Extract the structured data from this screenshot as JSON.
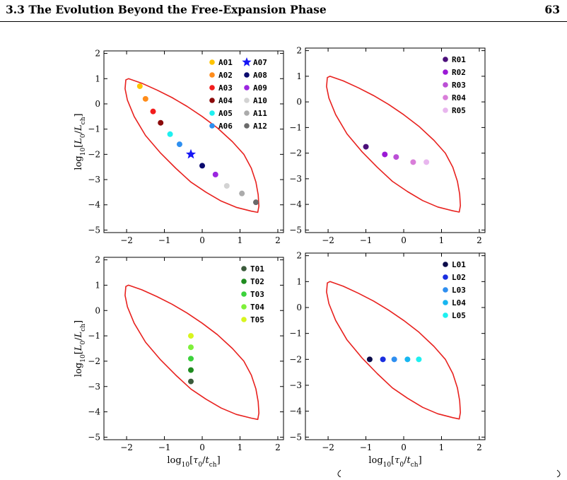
{
  "header": {
    "title": "3.3 The Evolution Beyond the Free-Expansion Phase",
    "page_number": "63"
  },
  "colors": {
    "contour": "#e8211e",
    "axis": "#000000"
  },
  "chart_data": [
    {
      "type": "scatter",
      "panel": "top-left",
      "xlim": [
        -2.6,
        2.15
      ],
      "ylim": [
        -5.1,
        2.1
      ],
      "xticks": [
        -2,
        -1,
        0,
        1,
        2
      ],
      "yticks": [
        -5,
        -4,
        -3,
        -2,
        -1,
        0,
        1,
        2
      ],
      "xlabel": "",
      "ylabel": "log10[L0/Lch]",
      "legend_position": "top-right",
      "legend_columns": 2,
      "contour": [
        [
          -2.02,
          0.95
        ],
        [
          -1.95,
          1.0
        ],
        [
          -1.6,
          0.82
        ],
        [
          -1.2,
          0.55
        ],
        [
          -0.8,
          0.25
        ],
        [
          -0.4,
          -0.1
        ],
        [
          0.0,
          -0.5
        ],
        [
          0.4,
          -0.95
        ],
        [
          0.8,
          -1.5
        ],
        [
          1.1,
          -2.0
        ],
        [
          1.3,
          -2.55
        ],
        [
          1.42,
          -3.1
        ],
        [
          1.48,
          -3.6
        ],
        [
          1.5,
          -4.05
        ],
        [
          1.47,
          -4.3
        ],
        [
          1.3,
          -4.25
        ],
        [
          0.9,
          -4.1
        ],
        [
          0.5,
          -3.85
        ],
        [
          0.1,
          -3.5
        ],
        [
          -0.3,
          -3.1
        ],
        [
          -0.7,
          -2.55
        ],
        [
          -1.1,
          -1.95
        ],
        [
          -1.5,
          -1.25
        ],
        [
          -1.8,
          -0.5
        ],
        [
          -1.98,
          0.15
        ],
        [
          -2.04,
          0.6
        ]
      ],
      "series": [
        {
          "name": "A01",
          "color": "#ffc400",
          "marker": "circle",
          "x": -1.65,
          "y": 0.7
        },
        {
          "name": "A02",
          "color": "#ff8c1a",
          "marker": "circle",
          "x": -1.5,
          "y": 0.2
        },
        {
          "name": "A03",
          "color": "#f21c1c",
          "marker": "circle",
          "x": -1.3,
          "y": -0.3
        },
        {
          "name": "A04",
          "color": "#8b0a0a",
          "marker": "circle",
          "x": -1.1,
          "y": -0.75
        },
        {
          "name": "A05",
          "color": "#1ef0f0",
          "marker": "circle",
          "x": -0.85,
          "y": -1.2
        },
        {
          "name": "A06",
          "color": "#2e8ff0",
          "marker": "circle",
          "x": -0.6,
          "y": -1.6
        },
        {
          "name": "A07",
          "color": "#1616f5",
          "marker": "star",
          "x": -0.3,
          "y": -2.0
        },
        {
          "name": "A08",
          "color": "#0a0a6e",
          "marker": "circle",
          "x": 0.0,
          "y": -2.45
        },
        {
          "name": "A09",
          "color": "#9b26e0",
          "marker": "circle",
          "x": 0.35,
          "y": -2.8
        },
        {
          "name": "A10",
          "color": "#d3d3d3",
          "marker": "circle",
          "x": 0.65,
          "y": -3.25
        },
        {
          "name": "A11",
          "color": "#ababab",
          "marker": "circle",
          "x": 1.05,
          "y": -3.55
        },
        {
          "name": "A12",
          "color": "#6a6a6a",
          "marker": "circle",
          "x": 1.42,
          "y": -3.9
        }
      ]
    },
    {
      "type": "scatter",
      "panel": "top-right",
      "xlim": [
        -2.6,
        2.15
      ],
      "ylim": [
        -5.1,
        2.1
      ],
      "xticks": [
        -2,
        -1,
        0,
        1,
        2
      ],
      "yticks": [
        -5,
        -4,
        -3,
        -2,
        -1,
        0,
        1,
        2
      ],
      "xlabel": "",
      "ylabel": "",
      "legend_position": "top-right",
      "legend_columns": 1,
      "contour": [
        [
          -2.02,
          0.95
        ],
        [
          -1.95,
          1.0
        ],
        [
          -1.6,
          0.82
        ],
        [
          -1.2,
          0.55
        ],
        [
          -0.8,
          0.25
        ],
        [
          -0.4,
          -0.1
        ],
        [
          0.0,
          -0.5
        ],
        [
          0.4,
          -0.95
        ],
        [
          0.8,
          -1.5
        ],
        [
          1.1,
          -2.0
        ],
        [
          1.3,
          -2.55
        ],
        [
          1.42,
          -3.1
        ],
        [
          1.48,
          -3.6
        ],
        [
          1.5,
          -4.05
        ],
        [
          1.47,
          -4.3
        ],
        [
          1.3,
          -4.25
        ],
        [
          0.9,
          -4.1
        ],
        [
          0.5,
          -3.85
        ],
        [
          0.1,
          -3.5
        ],
        [
          -0.3,
          -3.1
        ],
        [
          -0.7,
          -2.55
        ],
        [
          -1.1,
          -1.95
        ],
        [
          -1.5,
          -1.25
        ],
        [
          -1.8,
          -0.5
        ],
        [
          -1.98,
          0.15
        ],
        [
          -2.04,
          0.6
        ]
      ],
      "series": [
        {
          "name": "R01",
          "color": "#4b0f7a",
          "marker": "circle",
          "x": -1.0,
          "y": -1.75
        },
        {
          "name": "R02",
          "color": "#9b19d6",
          "marker": "circle",
          "x": -0.5,
          "y": -2.05
        },
        {
          "name": "R03",
          "color": "#bb4fd6",
          "marker": "circle",
          "x": -0.2,
          "y": -2.15
        },
        {
          "name": "R04",
          "color": "#d97ed9",
          "marker": "circle",
          "x": 0.25,
          "y": -2.35
        },
        {
          "name": "R05",
          "color": "#e8b6ee",
          "marker": "circle",
          "x": 0.6,
          "y": -2.35
        }
      ]
    },
    {
      "type": "scatter",
      "panel": "bottom-left",
      "xlim": [
        -2.6,
        2.15
      ],
      "ylim": [
        -5.1,
        2.1
      ],
      "xticks": [
        -2,
        -1,
        0,
        1,
        2
      ],
      "yticks": [
        -5,
        -4,
        -3,
        -2,
        -1,
        0,
        1,
        2
      ],
      "xlabel": "log10[τ0/tch]",
      "ylabel": "log10[L0/Lch]",
      "legend_position": "top-right",
      "legend_columns": 1,
      "contour": [
        [
          -2.02,
          0.95
        ],
        [
          -1.95,
          1.0
        ],
        [
          -1.6,
          0.82
        ],
        [
          -1.2,
          0.55
        ],
        [
          -0.8,
          0.25
        ],
        [
          -0.4,
          -0.1
        ],
        [
          0.0,
          -0.5
        ],
        [
          0.4,
          -0.95
        ],
        [
          0.8,
          -1.5
        ],
        [
          1.1,
          -2.0
        ],
        [
          1.3,
          -2.55
        ],
        [
          1.42,
          -3.1
        ],
        [
          1.48,
          -3.6
        ],
        [
          1.5,
          -4.05
        ],
        [
          1.47,
          -4.3
        ],
        [
          1.3,
          -4.25
        ],
        [
          0.9,
          -4.1
        ],
        [
          0.5,
          -3.85
        ],
        [
          0.1,
          -3.5
        ],
        [
          -0.3,
          -3.1
        ],
        [
          -0.7,
          -2.55
        ],
        [
          -1.1,
          -1.95
        ],
        [
          -1.5,
          -1.25
        ],
        [
          -1.8,
          -0.5
        ],
        [
          -1.98,
          0.15
        ],
        [
          -2.04,
          0.6
        ]
      ],
      "series": [
        {
          "name": "T01",
          "color": "#3a5a3a",
          "marker": "circle",
          "x": -0.3,
          "y": -2.8
        },
        {
          "name": "T02",
          "color": "#1f8c1f",
          "marker": "circle",
          "x": -0.3,
          "y": -2.35
        },
        {
          "name": "T03",
          "color": "#3cd23c",
          "marker": "circle",
          "x": -0.3,
          "y": -1.9
        },
        {
          "name": "T04",
          "color": "#7ef03a",
          "marker": "circle",
          "x": -0.3,
          "y": -1.45
        },
        {
          "name": "T05",
          "color": "#d8f51e",
          "marker": "circle",
          "x": -0.3,
          "y": -1.0
        }
      ]
    },
    {
      "type": "scatter",
      "panel": "bottom-right",
      "xlim": [
        -2.6,
        2.15
      ],
      "ylim": [
        -5.1,
        2.1
      ],
      "xticks": [
        -2,
        -1,
        0,
        1,
        2
      ],
      "yticks": [
        -5,
        -4,
        -3,
        -2,
        -1,
        0,
        1,
        2
      ],
      "xlabel": "log10[τ0/tch]",
      "ylabel": "",
      "legend_position": "top-right",
      "legend_columns": 1,
      "contour": [
        [
          -2.02,
          0.95
        ],
        [
          -1.95,
          1.0
        ],
        [
          -1.6,
          0.82
        ],
        [
          -1.2,
          0.55
        ],
        [
          -0.8,
          0.25
        ],
        [
          -0.4,
          -0.1
        ],
        [
          0.0,
          -0.5
        ],
        [
          0.4,
          -0.95
        ],
        [
          0.8,
          -1.5
        ],
        [
          1.1,
          -2.0
        ],
        [
          1.3,
          -2.55
        ],
        [
          1.42,
          -3.1
        ],
        [
          1.48,
          -3.6
        ],
        [
          1.5,
          -4.05
        ],
        [
          1.47,
          -4.3
        ],
        [
          1.3,
          -4.25
        ],
        [
          0.9,
          -4.1
        ],
        [
          0.5,
          -3.85
        ],
        [
          0.1,
          -3.5
        ],
        [
          -0.3,
          -3.1
        ],
        [
          -0.7,
          -2.55
        ],
        [
          -1.1,
          -1.95
        ],
        [
          -1.5,
          -1.25
        ],
        [
          -1.8,
          -0.5
        ],
        [
          -1.98,
          0.15
        ],
        [
          -2.04,
          0.6
        ]
      ],
      "series": [
        {
          "name": "L01",
          "color": "#0b0b4a",
          "marker": "circle",
          "x": -0.9,
          "y": -2.0
        },
        {
          "name": "L02",
          "color": "#1a2ee0",
          "marker": "circle",
          "x": -0.55,
          "y": -2.0
        },
        {
          "name": "L03",
          "color": "#2f8ff0",
          "marker": "circle",
          "x": -0.25,
          "y": -2.0
        },
        {
          "name": "L04",
          "color": "#17b6f0",
          "marker": "circle",
          "x": 0.1,
          "y": -2.0
        },
        {
          "name": "L05",
          "color": "#1df0f0",
          "marker": "circle",
          "x": 0.4,
          "y": -2.0
        }
      ]
    }
  ]
}
